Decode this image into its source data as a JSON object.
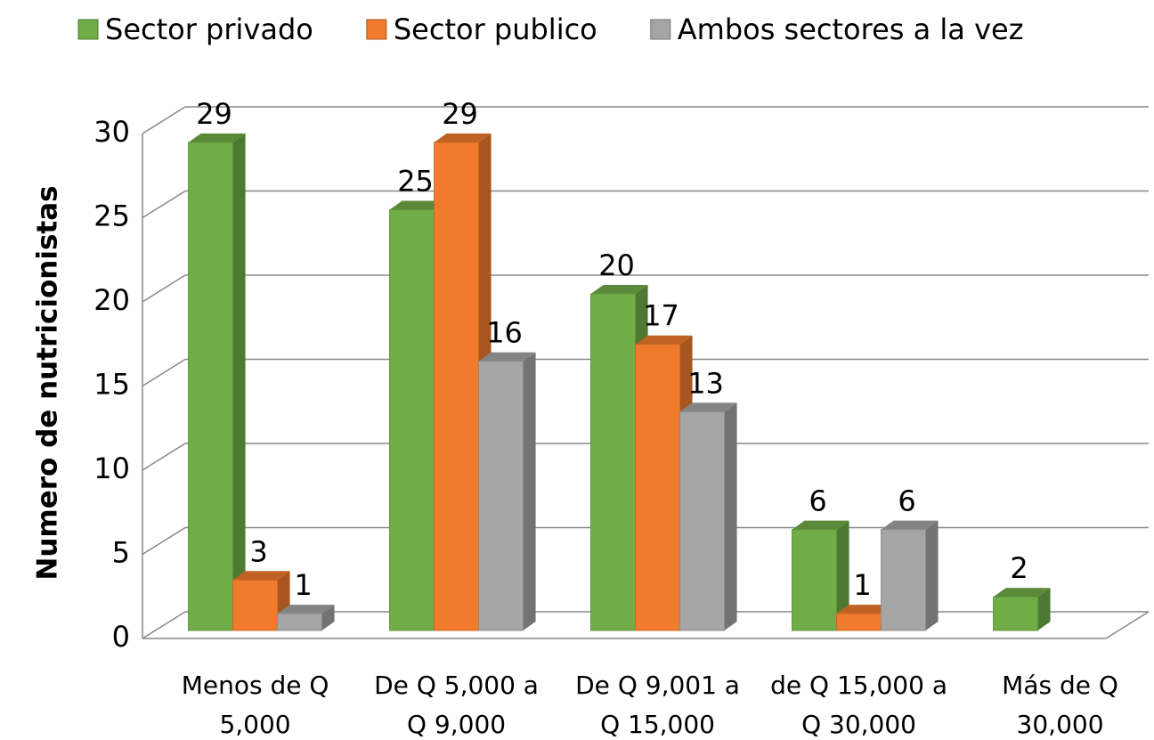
{
  "chart_data": {
    "type": "bar3d",
    "y_label": "Numero de nutricionistas",
    "categories": [
      "Menos de Q 5,000",
      "De Q 5,000 a Q 9,000",
      "De Q 9,001 a Q 15,000",
      "de Q 15,000 a Q 30,000",
      "Más de Q 30,000"
    ],
    "series": [
      {
        "name": "Sector privado",
        "color": "#70ad47",
        "values": [
          29,
          25,
          20,
          6,
          2
        ]
      },
      {
        "name": "Sector publico",
        "color": "#f07b2c",
        "values": [
          3,
          29,
          17,
          1,
          null
        ]
      },
      {
        "name": "Ambos sectores a la vez",
        "color": "#a5a5a5",
        "values": [
          1,
          16,
          13,
          6,
          null
        ]
      }
    ],
    "ylim": [
      0,
      30
    ],
    "yticks": [
      0,
      5,
      10,
      15,
      20,
      25,
      30
    ],
    "grid": true,
    "legend": "top"
  }
}
